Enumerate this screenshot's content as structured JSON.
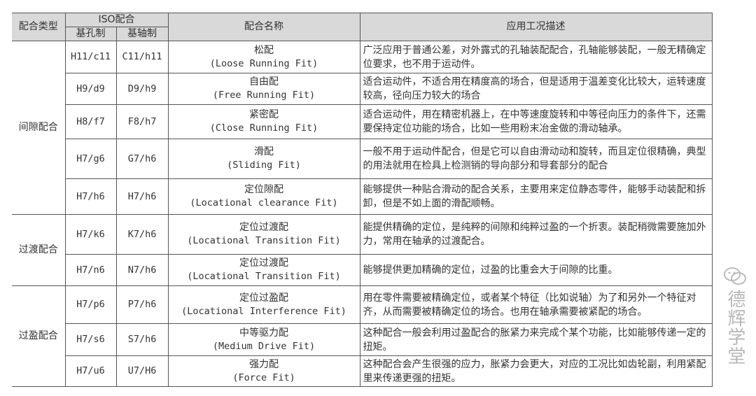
{
  "header": {
    "type": "配合类型",
    "iso": "ISO配合",
    "hole_basis": "基孔制",
    "shaft_basis": "基轴制",
    "name": "配合名称",
    "desc": "应用工况描述"
  },
  "groups": [
    {
      "type": "间隙配合",
      "rows": [
        {
          "hole": "H11/c11",
          "shaft": "C11/h11",
          "name": "松配",
          "en": "(Loose Running Fit)",
          "desc": "广泛应用于普通公差，对外露式的孔轴装配配合，孔轴能够装配，一般无精确定位要求，也不用于运动件。"
        },
        {
          "hole": "H9/d9",
          "shaft": "D9/h9",
          "name": "自由配",
          "en": "(Free Running Fit)",
          "desc": "适合运动件，不适合用在精度高的场合，但是适用于温差变化比较大，运转速度较高，径向压力较大的场合"
        },
        {
          "hole": "H8/f7",
          "shaft": "F8/h7",
          "name": "紧密配",
          "en": "(Close Running Fit)",
          "desc": "适合运动件，用在精密机器上，在中等速度旋转和中等径向压力的条件下，还需要保持定位功能的场合，比如一些用粉末冶金做的滑动轴承。"
        },
        {
          "hole": "H7/g6",
          "shaft": "G7/h6",
          "name": "滑配",
          "en": "(Sliding Fit)",
          "desc": "一般不用于运动件配合，但是它可以自由滑动动和旋转，而且定位很精确，典型的用法就用在检具上检测销的导向部分和导套部分的配合"
        },
        {
          "hole": "H7/h6",
          "shaft": "H7/h6",
          "name": "定位隙配",
          "en": "(Locational clearance Fit)",
          "desc": "能够提供一种贴合滑动的配合关系，主要用来定位静态零件，能够手动装配和拆卸，但是不如上面的滑配顺畅。"
        }
      ]
    },
    {
      "type": "过渡配合",
      "rows": [
        {
          "hole": "H7/k6",
          "shaft": "K7/h6",
          "name": "定位过渡配",
          "en": "(Locational Transition Fit)",
          "desc": "能提供精确的定位，是纯粹的间隙和纯粹过盈的一个折衷。装配稍微需要施加外力，常用在轴承的过渡配合。"
        },
        {
          "hole": "H7/n6",
          "shaft": "N7/h6",
          "name": "定位过渡配",
          "en": "(Locational Transition Fit)",
          "desc": "能够提供更加精确的定位，过盈的比重会大于间隙的比重。"
        }
      ]
    },
    {
      "type": "过盈配合",
      "rows": [
        {
          "hole": "H7/p6",
          "shaft": "P7/h6",
          "name": "定位过盈配",
          "en": "(Locational Interference Fit)",
          "desc": "用在零件需要被精确定位，或者某个特征（比如说轴）为了和另外一个特征对齐，从而需要被精确定位的场合。也用在轴承需要被紧配的场合。"
        },
        {
          "hole": "H7/s6",
          "shaft": "S7/h6",
          "name": "中等驱力配",
          "en": "(Medium Drive Fit)",
          "desc": "这种配合一般会利用过盈配合的胀紧力来完成个某个功能，比如能够传递一定的扭矩。"
        },
        {
          "hole": "H7/u6",
          "shaft": "U7/H6",
          "name": "强力配",
          "en": "(Force Fit)",
          "desc": "这种配合会产生很强的应力，胀紧力会更大，对应的工况比如齿轮副，利用紧配里来传递更强的扭矩。"
        }
      ]
    }
  ],
  "watermark": {
    "text": "德辉学堂",
    "icon": "wechat-icon"
  }
}
